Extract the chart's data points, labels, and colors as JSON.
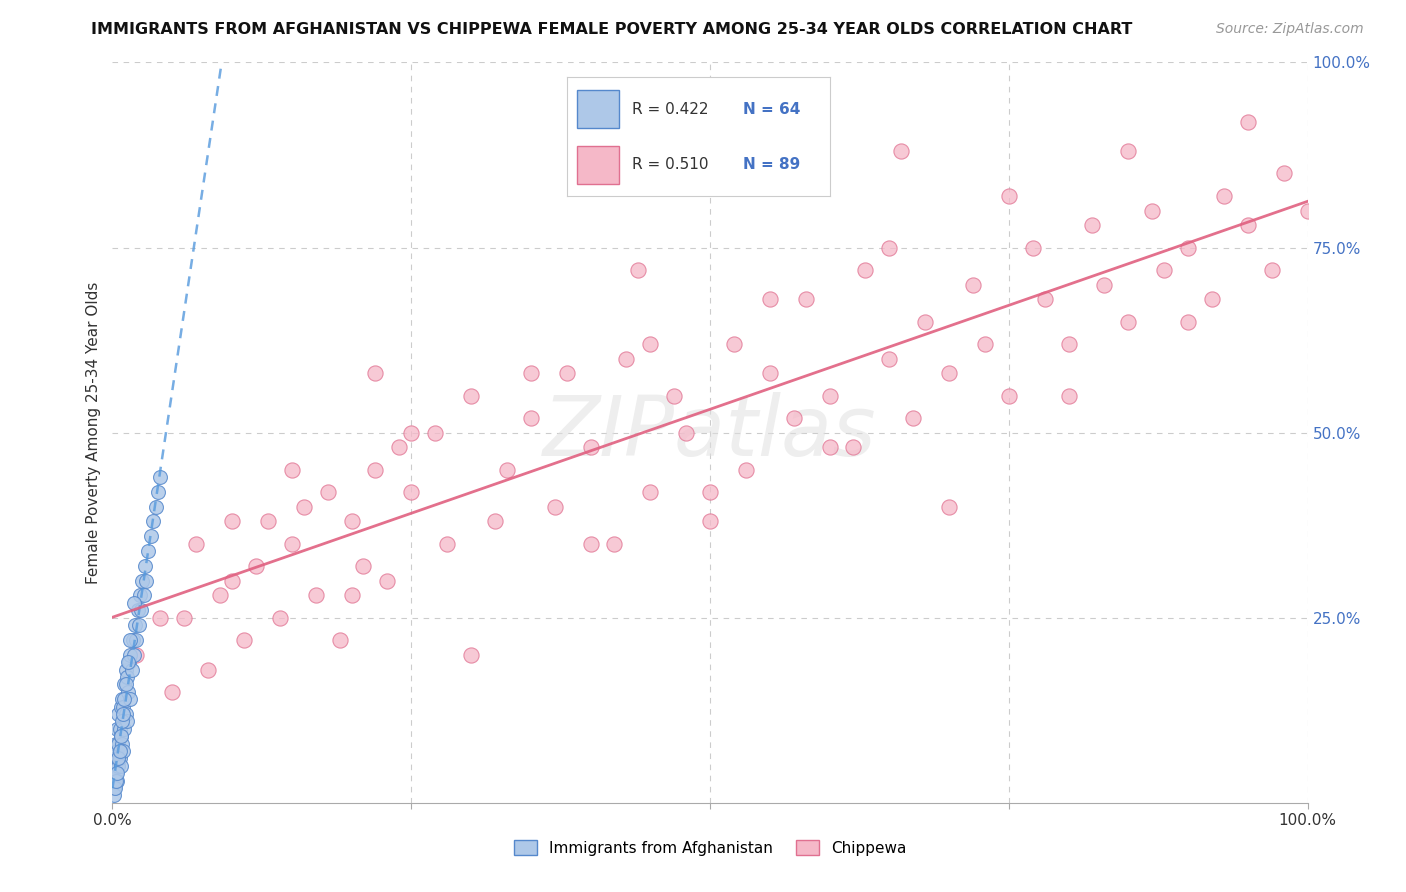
{
  "title": "IMMIGRANTS FROM AFGHANISTAN VS CHIPPEWA FEMALE POVERTY AMONG 25-34 YEAR OLDS CORRELATION CHART",
  "source": "Source: ZipAtlas.com",
  "ylabel": "Female Poverty Among 25-34 Year Olds",
  "xlim": [
    0,
    1
  ],
  "ylim": [
    0,
    1
  ],
  "watermark_text": "ZIPatlas",
  "r1": 0.422,
  "n1": 64,
  "r2": 0.51,
  "n2": 89,
  "blue_face": "#aec8e8",
  "blue_edge": "#5588cc",
  "pink_face": "#f5b8c8",
  "pink_edge": "#e07090",
  "trend_blue_color": "#5599dd",
  "trend_pink_color": "#e06080",
  "grid_color": "#cccccc",
  "right_tick_color": "#4472c4",
  "background": "#ffffff",
  "title_color": "#111111",
  "source_color": "#999999",
  "ylabel_color": "#333333",
  "afg_x": [
    0.001,
    0.002,
    0.002,
    0.003,
    0.003,
    0.003,
    0.004,
    0.004,
    0.004,
    0.005,
    0.005,
    0.005,
    0.006,
    0.006,
    0.007,
    0.007,
    0.007,
    0.008,
    0.008,
    0.009,
    0.009,
    0.01,
    0.01,
    0.011,
    0.011,
    0.012,
    0.012,
    0.013,
    0.014,
    0.015,
    0.015,
    0.016,
    0.017,
    0.018,
    0.019,
    0.02,
    0.021,
    0.022,
    0.023,
    0.024,
    0.025,
    0.026,
    0.027,
    0.028,
    0.03,
    0.032,
    0.034,
    0.036,
    0.038,
    0.04,
    0.001,
    0.002,
    0.003,
    0.004,
    0.005,
    0.006,
    0.007,
    0.008,
    0.009,
    0.01,
    0.011,
    0.013,
    0.015,
    0.018
  ],
  "afg_y": [
    0.02,
    0.03,
    0.05,
    0.04,
    0.06,
    0.08,
    0.03,
    0.07,
    0.1,
    0.05,
    0.08,
    0.12,
    0.06,
    0.1,
    0.05,
    0.09,
    0.13,
    0.08,
    0.14,
    0.07,
    0.13,
    0.1,
    0.16,
    0.12,
    0.18,
    0.11,
    0.17,
    0.15,
    0.19,
    0.14,
    0.2,
    0.18,
    0.22,
    0.2,
    0.24,
    0.22,
    0.26,
    0.24,
    0.28,
    0.26,
    0.3,
    0.28,
    0.32,
    0.3,
    0.34,
    0.36,
    0.38,
    0.4,
    0.42,
    0.44,
    0.01,
    0.02,
    0.03,
    0.04,
    0.06,
    0.07,
    0.09,
    0.11,
    0.12,
    0.14,
    0.16,
    0.19,
    0.22,
    0.27
  ],
  "chip_x": [
    0.02,
    0.04,
    0.05,
    0.07,
    0.08,
    0.09,
    0.1,
    0.11,
    0.12,
    0.13,
    0.14,
    0.15,
    0.16,
    0.17,
    0.18,
    0.19,
    0.2,
    0.21,
    0.22,
    0.23,
    0.24,
    0.25,
    0.27,
    0.28,
    0.3,
    0.32,
    0.33,
    0.35,
    0.37,
    0.38,
    0.4,
    0.42,
    0.43,
    0.45,
    0.47,
    0.48,
    0.5,
    0.52,
    0.53,
    0.55,
    0.57,
    0.58,
    0.6,
    0.62,
    0.63,
    0.65,
    0.67,
    0.68,
    0.7,
    0.72,
    0.73,
    0.75,
    0.77,
    0.78,
    0.8,
    0.82,
    0.83,
    0.85,
    0.87,
    0.88,
    0.9,
    0.92,
    0.93,
    0.95,
    0.97,
    0.98,
    1.0,
    0.06,
    0.1,
    0.15,
    0.2,
    0.25,
    0.3,
    0.35,
    0.4,
    0.45,
    0.5,
    0.55,
    0.6,
    0.65,
    0.7,
    0.75,
    0.8,
    0.85,
    0.9,
    0.95,
    0.22,
    0.44,
    0.66
  ],
  "chip_y": [
    0.2,
    0.25,
    0.15,
    0.35,
    0.18,
    0.28,
    0.3,
    0.22,
    0.32,
    0.38,
    0.25,
    0.35,
    0.4,
    0.28,
    0.42,
    0.22,
    0.38,
    0.32,
    0.45,
    0.3,
    0.48,
    0.42,
    0.5,
    0.35,
    0.55,
    0.38,
    0.45,
    0.52,
    0.4,
    0.58,
    0.48,
    0.35,
    0.6,
    0.42,
    0.55,
    0.5,
    0.38,
    0.62,
    0.45,
    0.58,
    0.52,
    0.68,
    0.55,
    0.48,
    0.72,
    0.6,
    0.52,
    0.65,
    0.58,
    0.7,
    0.62,
    0.55,
    0.75,
    0.68,
    0.62,
    0.78,
    0.7,
    0.65,
    0.8,
    0.72,
    0.75,
    0.68,
    0.82,
    0.78,
    0.72,
    0.85,
    0.8,
    0.25,
    0.38,
    0.45,
    0.28,
    0.5,
    0.2,
    0.58,
    0.35,
    0.62,
    0.42,
    0.68,
    0.48,
    0.75,
    0.4,
    0.82,
    0.55,
    0.88,
    0.65,
    0.92,
    0.58,
    0.72,
    0.88
  ]
}
